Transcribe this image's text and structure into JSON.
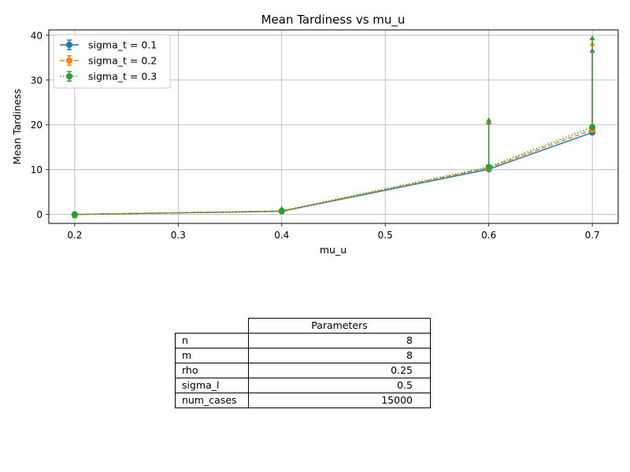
{
  "chart_data": {
    "type": "line",
    "title": "Mean Tardiness vs mu_u",
    "xlabel": "mu_u",
    "ylabel": "Mean Tardiness",
    "xlim": [
      0.175,
      0.725
    ],
    "ylim": [
      -2,
      41.2
    ],
    "xticks": [
      0.2,
      0.3,
      0.4,
      0.5,
      0.6,
      0.7
    ],
    "yticks": [
      0,
      10,
      20,
      30,
      40
    ],
    "grid": true,
    "legend_position": "top-left",
    "x": [
      0.2,
      0.4,
      0.6,
      0.7
    ],
    "series": [
      {
        "name": "sigma_t = 0.1",
        "color": "#1f77b4",
        "linestyle": "solid",
        "values": [
          0.0,
          0.7,
          10.1,
          18.3
        ],
        "error_upper": [
          0.05,
          1.3,
          21.0,
          37.0
        ]
      },
      {
        "name": "sigma_t = 0.2",
        "color": "#ff7f0e",
        "linestyle": "dashed",
        "values": [
          0.0,
          0.75,
          10.4,
          18.9
        ],
        "error_upper": [
          0.1,
          1.5,
          21.2,
          38.5
        ]
      },
      {
        "name": "sigma_t = 0.3",
        "color": "#2ca02c",
        "linestyle": "dotted",
        "values": [
          0.0,
          0.8,
          10.6,
          19.5
        ],
        "error_upper": [
          0.15,
          1.7,
          21.5,
          39.8
        ]
      }
    ]
  },
  "table": {
    "header": "Parameters",
    "rows": [
      {
        "name": "n",
        "value": "8"
      },
      {
        "name": "m",
        "value": "8"
      },
      {
        "name": "rho",
        "value": "0.25"
      },
      {
        "name": "sigma_l",
        "value": "0.5"
      },
      {
        "name": "num_cases",
        "value": "15000"
      }
    ]
  }
}
